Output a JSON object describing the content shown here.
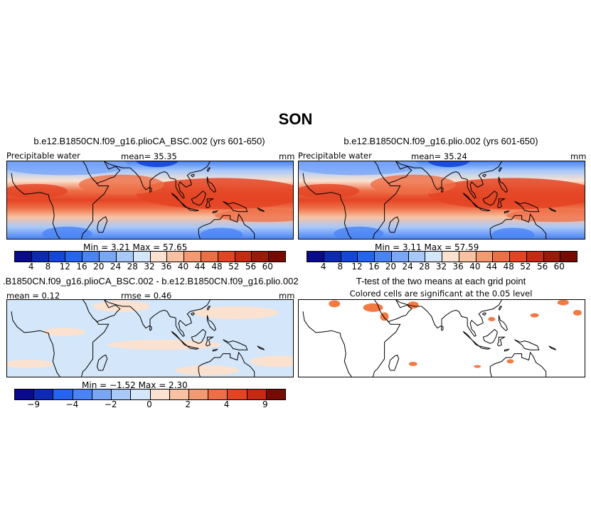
{
  "page_title": "SON",
  "panels": {
    "top_left": {
      "title": "b.e12.B1850CN.f09_g16.plioCA_BSC.002 (yrs 601-650)",
      "variable": "Precipitable water",
      "mean": "mean=  35.35",
      "units": "mm",
      "minmax": "Min =    3.21  Max =   57.65"
    },
    "top_right": {
      "title": "b.e12.B1850CN.f09_g16.plio.002 (yrs 601-650)",
      "variable": "Precipitable water",
      "mean": "mean=  35.24",
      "units": "mm",
      "minmax": "Min =    3.11  Max =   57.59"
    },
    "bottom_left": {
      "title": ".B1850CN.f09_g16.plioCA_BSC.002 - b.e12.B1850CN.f09_g16.plio.002",
      "mean": "mean =  0.12",
      "rmse": "rmse =   0.46",
      "units": "mm",
      "minmax": "Min =  −1.52  Max =    2.30"
    },
    "bottom_right": {
      "title": "T-test of the two means at each grid point",
      "subtitle": "Colored cells are significant at the 0.05 level"
    }
  },
  "colorbars": {
    "absolute": {
      "colors": [
        "#0a0a8c",
        "#0c2ab4",
        "#1446dc",
        "#2464ee",
        "#4a84f4",
        "#7aa6f6",
        "#a8c8f8",
        "#d4e6fa",
        "#fbe2d0",
        "#f8c2a2",
        "#f49a72",
        "#ee6e46",
        "#e44424",
        "#c62a12",
        "#9c1a0a",
        "#780a04"
      ],
      "labels": [
        "4",
        "8",
        "12",
        "16",
        "20",
        "24",
        "28",
        "32",
        "36",
        "40",
        "44",
        "48",
        "52",
        "56",
        "60"
      ]
    },
    "difference": {
      "colors": [
        "#0a0a8c",
        "#0c2ab4",
        "#2464ee",
        "#4a84f4",
        "#7aa6f6",
        "#a8c8f8",
        "#d4e6fa",
        "#fbe2d0",
        "#f8c2a2",
        "#f49a72",
        "#ee6e46",
        "#e44424",
        "#c62a12",
        "#780a04"
      ],
      "labels": [
        "−9",
        "−4",
        "−2",
        "0",
        "2",
        "4",
        "9"
      ]
    }
  },
  "colors": {
    "significance": "#f47a44",
    "coastline": "#000000"
  }
}
